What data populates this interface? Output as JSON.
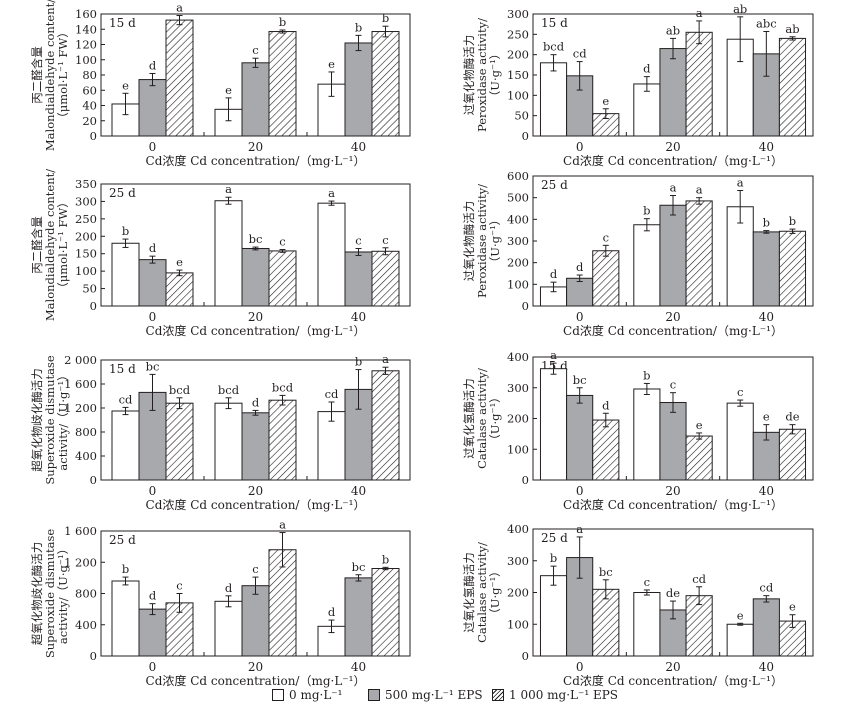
{
  "legend": [
    "0 mg·L⁻¹",
    "500 mg·L⁻¹ EPS",
    "1 000 mg·L⁻¹ EPS"
  ],
  "chart_data": [
    {
      "type": "bar",
      "panel_label": "15 d",
      "ylabel_lines": [
        "丙二醛含量",
        "Malondialdehyde content/",
        "（μmol·L⁻¹ FW）"
      ],
      "xlabel": "Cd浓度 Cd concentration/（mg·L⁻¹）",
      "categories": [
        "0",
        "20",
        "40"
      ],
      "ylim": [
        0,
        160
      ],
      "yticks": [
        0,
        20,
        40,
        60,
        80,
        100,
        120,
        140,
        160
      ],
      "ytick_labels": [
        "0",
        "20",
        "40",
        "60",
        "80",
        "100",
        "120",
        "140",
        "160"
      ],
      "series": [
        {
          "values": [
            42,
            35,
            68
          ],
          "errors": [
            14,
            15,
            16
          ],
          "letters": [
            "e",
            "e",
            "e"
          ]
        },
        {
          "values": [
            74,
            96,
            122
          ],
          "errors": [
            8,
            6,
            10
          ],
          "letters": [
            "d",
            "c",
            "b"
          ]
        },
        {
          "values": [
            152,
            137,
            137
          ],
          "errors": [
            6,
            2,
            7
          ],
          "letters": [
            "a",
            "b",
            "b"
          ]
        }
      ]
    },
    {
      "type": "bar",
      "panel_label": "15 d",
      "ylabel_lines": [
        "过氧化物酶活力",
        "Peroxidase activity/",
        "（U·g⁻¹）"
      ],
      "xlabel": "Cd浓度 Cd concentration/（mg·L⁻¹）",
      "categories": [
        "0",
        "20",
        "40"
      ],
      "ylim": [
        0,
        300
      ],
      "yticks": [
        0,
        50,
        100,
        150,
        200,
        250,
        300
      ],
      "ytick_labels": [
        "0",
        "50",
        "100",
        "150",
        "200",
        "250",
        "300"
      ],
      "series": [
        {
          "values": [
            180,
            128,
            238
          ],
          "errors": [
            20,
            18,
            55
          ],
          "letters": [
            "bcd",
            "d",
            "ab"
          ]
        },
        {
          "values": [
            148,
            215,
            202
          ],
          "errors": [
            35,
            25,
            55
          ],
          "letters": [
            "cd",
            "ab",
            "abc"
          ]
        },
        {
          "values": [
            55,
            255,
            240
          ],
          "errors": [
            12,
            28,
            4
          ],
          "letters": [
            "e",
            "a",
            "ab"
          ]
        }
      ]
    },
    {
      "type": "bar",
      "panel_label": "25 d",
      "ylabel_lines": [
        "丙二醛含量",
        "Malondialdehyde content/",
        "（μmol·L⁻¹ FW）"
      ],
      "xlabel": "Cd浓度 Cd concentration/（mg·L⁻¹）",
      "categories": [
        "0",
        "20",
        "40"
      ],
      "ylim": [
        0,
        350
      ],
      "yticks": [
        0,
        50,
        100,
        150,
        200,
        250,
        300,
        350
      ],
      "ytick_labels": [
        "0",
        "50",
        "100",
        "150",
        "200",
        "250",
        "300",
        "350"
      ],
      "series": [
        {
          "values": [
            180,
            302,
            295
          ],
          "errors": [
            12,
            10,
            6
          ],
          "letters": [
            "b",
            "a",
            "a"
          ]
        },
        {
          "values": [
            133,
            165,
            155
          ],
          "errors": [
            10,
            4,
            10
          ],
          "letters": [
            "d",
            "bc",
            "c"
          ]
        },
        {
          "values": [
            95,
            158,
            157
          ],
          "errors": [
            8,
            4,
            10
          ],
          "letters": [
            "e",
            "c",
            "c"
          ]
        }
      ]
    },
    {
      "type": "bar",
      "panel_label": "25 d",
      "ylabel_lines": [
        "过氧化物酶活力",
        "Peroxidase activity/",
        "（U·g⁻¹）"
      ],
      "xlabel": "Cd浓度 Cd concentration/（mg·L⁻¹）",
      "categories": [
        "0",
        "20",
        "40"
      ],
      "ylim": [
        0,
        600
      ],
      "yticks": [
        0,
        100,
        200,
        300,
        400,
        500,
        600
      ],
      "ytick_labels": [
        "0",
        "100",
        "200",
        "300",
        "400",
        "500",
        "600"
      ],
      "series": [
        {
          "values": [
            88,
            375,
            458
          ],
          "errors": [
            22,
            28,
            75
          ],
          "letters": [
            "d",
            "b",
            "a"
          ]
        },
        {
          "values": [
            128,
            465,
            342
          ],
          "errors": [
            15,
            45,
            6
          ],
          "letters": [
            "d",
            "a",
            "b"
          ]
        },
        {
          "values": [
            255,
            485,
            345
          ],
          "errors": [
            25,
            15,
            10
          ],
          "letters": [
            "c",
            "a",
            "b"
          ]
        }
      ]
    },
    {
      "type": "bar",
      "panel_label": "15 d",
      "ylabel_lines": [
        "超氧化物歧化酶活力",
        "Superoxide dismutase",
        "activity/（U·g⁻¹）"
      ],
      "xlabel": "Cd浓度 Cd concentration/（mg·L⁻¹）",
      "categories": [
        "0",
        "20",
        "40"
      ],
      "ylim": [
        0,
        2000
      ],
      "yticks": [
        0,
        400,
        800,
        1200,
        1600,
        2000
      ],
      "ytick_labels": [
        "0",
        "400",
        "800",
        "1 200",
        "1 600",
        "2 000"
      ],
      "series": [
        {
          "values": [
            1150,
            1280,
            1140
          ],
          "errors": [
            60,
            90,
            160
          ],
          "letters": [
            "cd",
            "bcd",
            "cd"
          ]
        },
        {
          "values": [
            1460,
            1120,
            1510
          ],
          "errors": [
            300,
            40,
            330
          ],
          "letters": [
            "bc",
            "d",
            "b"
          ]
        },
        {
          "values": [
            1280,
            1330,
            1820
          ],
          "errors": [
            90,
            80,
            60
          ],
          "letters": [
            "bcd",
            "bcd",
            "a"
          ]
        }
      ]
    },
    {
      "type": "bar",
      "panel_label": "15 d",
      "ylabel_lines": [
        "过氧化氢酶活力",
        "Catalase activity/",
        "（U·g⁻¹）"
      ],
      "xlabel": "Cd浓度 Cd concentration/（mg·L⁻¹）",
      "categories": [
        "0",
        "20",
        "40"
      ],
      "ylim": [
        0,
        400
      ],
      "yticks": [
        0,
        100,
        200,
        300,
        400
      ],
      "ytick_labels": [
        "0",
        "100",
        "200",
        "300",
        "400"
      ],
      "series": [
        {
          "values": [
            362,
            296,
            250
          ],
          "errors": [
            18,
            18,
            10
          ],
          "letters": [
            "a",
            "b",
            "c"
          ]
        },
        {
          "values": [
            275,
            252,
            155
          ],
          "errors": [
            25,
            32,
            25
          ],
          "letters": [
            "bc",
            "c",
            "e"
          ]
        },
        {
          "values": [
            195,
            143,
            165
          ],
          "errors": [
            22,
            10,
            15
          ],
          "letters": [
            "d",
            "e",
            "de"
          ]
        }
      ]
    },
    {
      "type": "bar",
      "panel_label": "25 d",
      "ylabel_lines": [
        "超氧化物歧化酶活力",
        "Superoxide dismutase",
        "activity/（U·g⁻¹）"
      ],
      "xlabel": "Cd浓度 Cd concentration/（mg·L⁻¹）",
      "categories": [
        "0",
        "20",
        "40"
      ],
      "ylim": [
        0,
        1600
      ],
      "yticks": [
        0,
        400,
        800,
        1200,
        1600
      ],
      "ytick_labels": [
        "0",
        "400",
        "800",
        "1 200",
        "1 600"
      ],
      "series": [
        {
          "values": [
            960,
            700,
            380
          ],
          "errors": [
            50,
            70,
            80
          ],
          "letters": [
            "b",
            "d",
            "d"
          ]
        },
        {
          "values": [
            600,
            900,
            1000
          ],
          "errors": [
            70,
            110,
            40
          ],
          "letters": [
            "d",
            "c",
            "bc"
          ]
        },
        {
          "values": [
            680,
            1360,
            1120
          ],
          "errors": [
            120,
            220,
            15
          ],
          "letters": [
            "c",
            "a",
            "b"
          ]
        }
      ]
    },
    {
      "type": "bar",
      "panel_label": "25 d",
      "ylabel_lines": [
        "过氧化氢酶活力",
        "Catalase activity/",
        "（U·g⁻¹）"
      ],
      "xlabel": "Cd浓度 Cd concentration/（mg·L⁻¹）",
      "categories": [
        "0",
        "20",
        "40"
      ],
      "ylim": [
        0,
        400
      ],
      "yticks": [
        0,
        100,
        200,
        300,
        400
      ],
      "ytick_labels": [
        "0",
        "100",
        "200",
        "300",
        "400"
      ],
      "series": [
        {
          "values": [
            253,
            200,
            100
          ],
          "errors": [
            30,
            8,
            3
          ],
          "letters": [
            "b",
            "c",
            "e"
          ]
        },
        {
          "values": [
            310,
            145,
            180
          ],
          "errors": [
            65,
            28,
            10
          ],
          "letters": [
            "a",
            "de",
            "cd"
          ]
        },
        {
          "values": [
            210,
            190,
            110
          ],
          "errors": [
            30,
            28,
            20
          ],
          "letters": [
            "bc",
            "cd",
            "e"
          ]
        }
      ]
    }
  ]
}
